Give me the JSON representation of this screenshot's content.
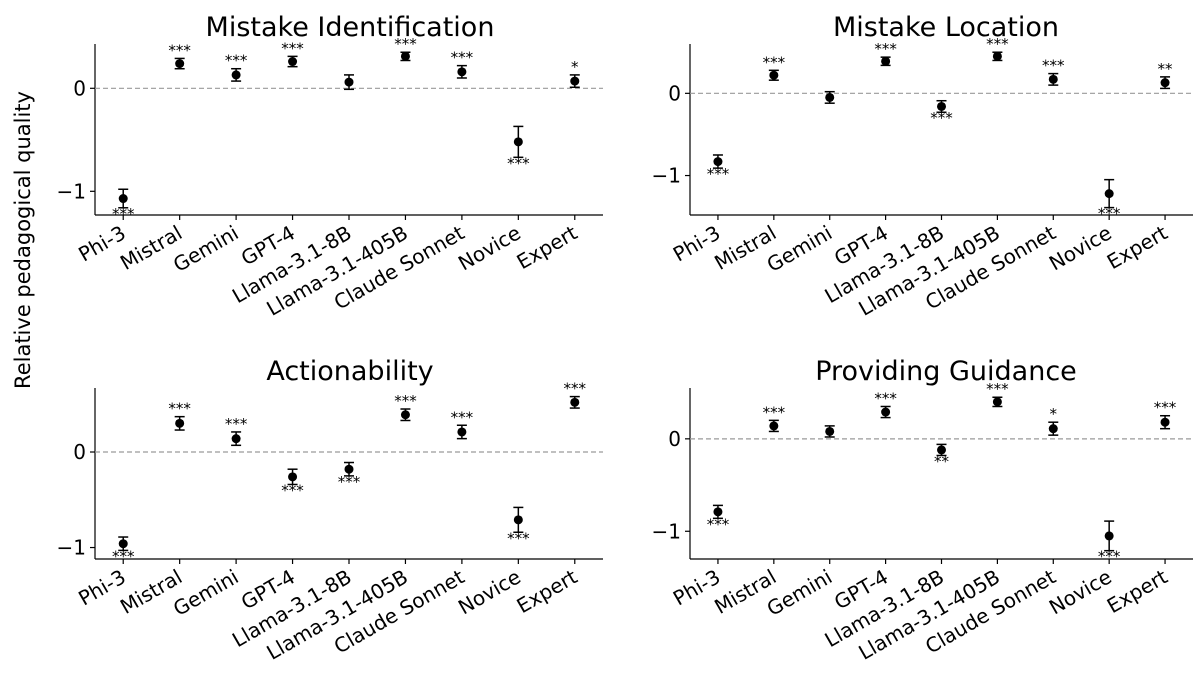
{
  "figure": {
    "ylabel": "Relative pedagogical quality"
  },
  "chart_data": [
    {
      "type": "scatter",
      "title": "Mistake Identification",
      "categories": [
        "Phi-3",
        "Mistral",
        "Gemini",
        "GPT-4",
        "Llama-3.1-8B",
        "Llama-3.1-405B",
        "Claude Sonnet",
        "Novice",
        "Expert"
      ],
      "values": [
        -1.07,
        0.24,
        0.13,
        0.26,
        0.06,
        0.31,
        0.16,
        -0.52,
        0.07
      ],
      "err": [
        0.09,
        0.05,
        0.06,
        0.05,
        0.07,
        0.04,
        0.06,
        0.15,
        0.06
      ],
      "significance": [
        "***",
        "***",
        "***",
        "***",
        "",
        "***",
        "***",
        "***",
        "*"
      ],
      "yticks": [
        0,
        -1
      ],
      "ylim": [
        -1.23,
        0.43
      ],
      "reference_line": 0,
      "grid": false
    },
    {
      "type": "scatter",
      "title": "Mistake Location",
      "categories": [
        "Phi-3",
        "Mistral",
        "Gemini",
        "GPT-4",
        "Llama-3.1-8B",
        "Llama-3.1-405B",
        "Claude Sonnet",
        "Novice",
        "Expert"
      ],
      "values": [
        -0.83,
        0.22,
        -0.05,
        0.39,
        -0.16,
        0.45,
        0.17,
        -1.22,
        0.13
      ],
      "err": [
        0.08,
        0.06,
        0.07,
        0.05,
        0.07,
        0.05,
        0.07,
        0.17,
        0.07
      ],
      "significance": [
        "***",
        "***",
        "",
        "***",
        "***",
        "***",
        "***",
        "***",
        "**"
      ],
      "yticks": [
        0,
        -1
      ],
      "ylim": [
        -1.48,
        0.6
      ],
      "reference_line": 0,
      "grid": false
    },
    {
      "type": "scatter",
      "title": "Actionability",
      "categories": [
        "Phi-3",
        "Mistral",
        "Gemini",
        "GPT-4",
        "Llama-3.1-8B",
        "Llama-3.1-405B",
        "Claude Sonnet",
        "Novice",
        "Expert"
      ],
      "values": [
        -0.96,
        0.3,
        0.14,
        -0.26,
        -0.18,
        0.39,
        0.21,
        -0.71,
        0.52
      ],
      "err": [
        0.07,
        0.07,
        0.07,
        0.08,
        0.07,
        0.06,
        0.07,
        0.13,
        0.06
      ],
      "significance": [
        "***",
        "***",
        "***",
        "***",
        "***",
        "***",
        "***",
        "***",
        "***"
      ],
      "yticks": [
        0,
        -1
      ],
      "ylim": [
        -1.12,
        0.67
      ],
      "reference_line": 0,
      "grid": false
    },
    {
      "type": "scatter",
      "title": "Providing Guidance",
      "categories": [
        "Phi-3",
        "Mistral",
        "Gemini",
        "GPT-4",
        "Llama-3.1-8B",
        "Llama-3.1-405B",
        "Claude Sonnet",
        "Novice",
        "Expert"
      ],
      "values": [
        -0.79,
        0.14,
        0.08,
        0.29,
        -0.12,
        0.4,
        0.11,
        -1.05,
        0.18
      ],
      "err": [
        0.07,
        0.06,
        0.06,
        0.06,
        0.06,
        0.05,
        0.07,
        0.16,
        0.07
      ],
      "significance": [
        "***",
        "***",
        "",
        "***",
        "**",
        "***",
        "*",
        "***",
        "***"
      ],
      "yticks": [
        0,
        -1
      ],
      "ylim": [
        -1.3,
        0.55
      ],
      "reference_line": 0,
      "grid": false
    }
  ]
}
